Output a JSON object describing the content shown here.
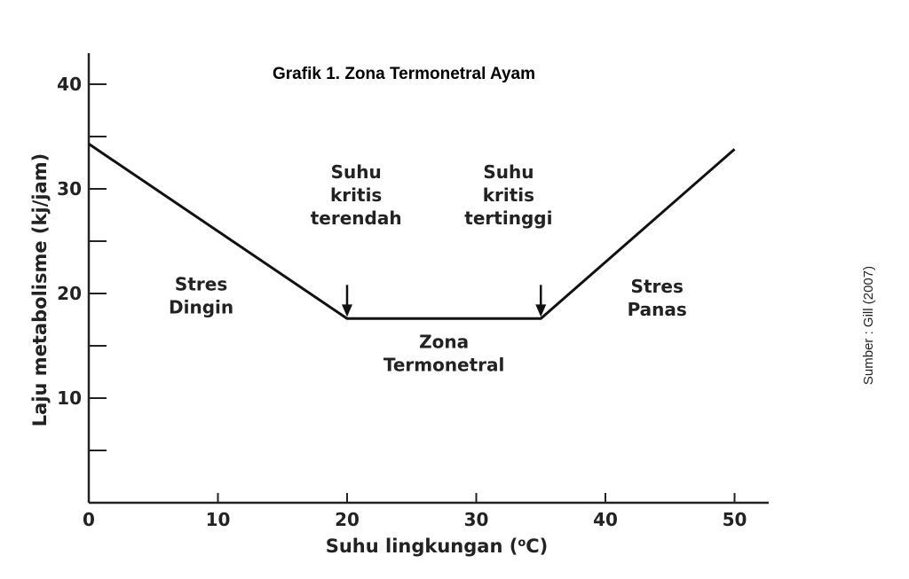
{
  "chart_data": {
    "type": "line",
    "title": "Grafik 1. Zona Termonetral Ayam",
    "xlabel": "Suhu lingkungan (°C)",
    "xlabel_main": "Suhu lingkungan (",
    "xlabel_sup": "o",
    "xlabel_tail": "C)",
    "ylabel": "Laju metabolisme (kj/jam)",
    "xlim": [
      0,
      50
    ],
    "ylim": [
      0,
      43
    ],
    "x_ticks": [
      0,
      10,
      20,
      30,
      40,
      50
    ],
    "y_ticks": [
      10,
      20,
      30,
      40
    ],
    "y_minor_ticks": [
      5,
      15,
      25,
      35
    ],
    "grid": false,
    "series": [
      {
        "x": [
          0,
          20,
          35,
          50
        ],
        "y": [
          34.3,
          17.6,
          17.6,
          33.8
        ]
      }
    ],
    "annotations": [
      {
        "lines": [
          "Stres",
          "Dingin"
        ],
        "x": 8.7,
        "y": 20.3
      },
      {
        "lines": [
          "Suhu",
          "kritis",
          "terendah"
        ],
        "x": 20.7,
        "y": 31,
        "arrow_to": [
          20,
          17.6
        ]
      },
      {
        "lines": [
          "Suhu",
          "kritis",
          "tertinggi"
        ],
        "x": 32.5,
        "y": 31,
        "arrow_to": [
          35,
          17.6
        ]
      },
      {
        "lines": [
          "Zona",
          "Termonetral"
        ],
        "x": 27.5,
        "y": 14.8
      },
      {
        "lines": [
          "Stres",
          "Panas"
        ],
        "x": 44.0,
        "y": 20.1
      }
    ]
  },
  "source_note": "Sumber : Gill (2007)"
}
